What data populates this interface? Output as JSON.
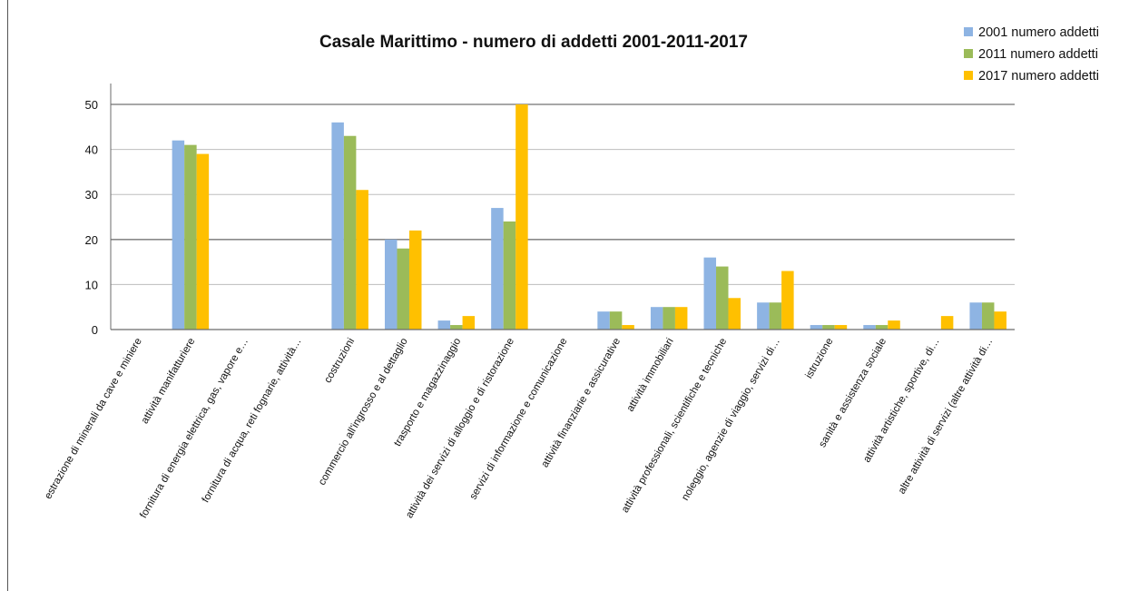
{
  "chart_data": {
    "type": "bar",
    "title": "Casale Marittimo - numero di addetti 2001-2011-2017",
    "xlabel": "",
    "ylabel": "",
    "ylim": [
      0,
      50
    ],
    "yticks": [
      0,
      10,
      20,
      30,
      40,
      50
    ],
    "grid": true,
    "legend_position": "top-right",
    "categories": [
      "estrazione di minerali da cave e miniere",
      "attività manifatturiere",
      "fornitura di energia elettrica, gas, vapore e…",
      "fornitura di acqua, reti fognarie, attività…",
      "costruzioni",
      "commercio all'ingrosso e al dettaglio",
      "trasporto e magazzinaggio",
      "attività dei servizi di alloggio e di ristorazione",
      "servizi di informazione e comunicazione",
      "attività finanziarie e assicurative",
      "attività immobiliari",
      "attività professionali, scientifiche e tecniche",
      "noleggio, agenzie di viaggio, servizi di…",
      "istruzione",
      "sanità e assistenza sociale",
      "attività artistiche, sportive, di…",
      "altre attività di servizi (altre attività di…"
    ],
    "series": [
      {
        "name": "2001 numero addetti",
        "color": "#8eb4e3",
        "values": [
          0,
          42,
          0,
          0,
          46,
          20,
          2,
          27,
          0,
          4,
          5,
          16,
          6,
          1,
          1,
          0,
          6
        ]
      },
      {
        "name": "2011 numero addetti",
        "color": "#9bbb59",
        "values": [
          0,
          41,
          0,
          0,
          43,
          18,
          1,
          24,
          0,
          4,
          5,
          14,
          6,
          1,
          1,
          0,
          6
        ]
      },
      {
        "name": "2017 numero addetti",
        "color": "#ffc000",
        "values": [
          0,
          39,
          0,
          0,
          31,
          22,
          3,
          50,
          0,
          1,
          5,
          7,
          13,
          1,
          2,
          3,
          4
        ]
      }
    ]
  }
}
